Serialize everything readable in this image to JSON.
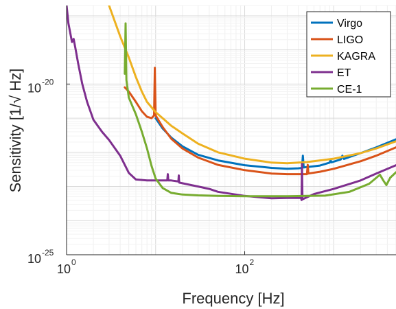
{
  "chart_data": {
    "type": "line",
    "title": "",
    "xlabel": "Frequency [Hz]",
    "ylabel": "Sensitivity [1/√ Hz]",
    "xscale": "log",
    "yscale": "log",
    "xlim": [
      1,
      5000
    ],
    "ylim": [
      1e-25,
      2e-18
    ],
    "xticks": [
      {
        "value": 1,
        "base": "10",
        "exp": "0"
      },
      {
        "value": 100,
        "base": "10",
        "exp": "2"
      }
    ],
    "yticks": [
      {
        "value": 1e-25,
        "base": "10",
        "exp": "-25"
      },
      {
        "value": 1e-20,
        "base": "10",
        "exp": "-20"
      }
    ],
    "grid": true,
    "legend_position": "top-right",
    "series": [
      {
        "name": "Virgo",
        "color": "#0072BD",
        "points": [
          [
            10,
            1e-21
          ],
          [
            12,
            5e-22
          ],
          [
            15,
            2.7e-22
          ],
          [
            20,
            1.5e-22
          ],
          [
            30,
            8.5e-23
          ],
          [
            50,
            5.8e-23
          ],
          [
            100,
            4.2e-23
          ],
          [
            200,
            3.5e-23
          ],
          [
            300,
            3.3e-23
          ],
          [
            400,
            3.4e-23
          ],
          [
            440,
            3.5e-23
          ],
          [
            450,
            8e-23
          ],
          [
            460,
            3.6e-23
          ],
          [
            700,
            4.1e-23
          ],
          [
            900,
            5e-23
          ],
          [
            920,
            6e-23
          ],
          [
            940,
            5.1e-23
          ],
          [
            1200,
            6.2e-23
          ],
          [
            1250,
            8e-23
          ],
          [
            1300,
            6.4e-23
          ],
          [
            2000,
            9.5e-23
          ],
          [
            3000,
            1.4e-22
          ],
          [
            5000,
            2.4e-22
          ]
        ]
      },
      {
        "name": "LIGO",
        "color": "#D95319",
        "points": [
          [
            4.5,
            8e-21
          ],
          [
            5,
            6e-21
          ],
          [
            6,
            3e-21
          ],
          [
            7,
            1.6e-21
          ],
          [
            8,
            1.1e-21
          ],
          [
            9,
            1e-21
          ],
          [
            9.6,
            1.2e-21
          ],
          [
            9.8,
            3e-20
          ],
          [
            10,
            1.2e-21
          ],
          [
            12,
            5.5e-22
          ],
          [
            15,
            2.5e-22
          ],
          [
            20,
            1.3e-22
          ],
          [
            30,
            7e-23
          ],
          [
            50,
            4.3e-23
          ],
          [
            100,
            3e-23
          ],
          [
            200,
            2.4e-23
          ],
          [
            300,
            2.3e-23
          ],
          [
            500,
            2.3e-23
          ],
          [
            510,
            4.3e-23
          ],
          [
            520,
            2.4e-23
          ],
          [
            700,
            2.7e-23
          ],
          [
            1000,
            3.3e-23
          ],
          [
            2000,
            5.5e-23
          ],
          [
            3000,
            8e-23
          ],
          [
            5000,
            1.4e-22
          ]
        ]
      },
      {
        "name": "KAGRA",
        "color": "#EDB120",
        "points": [
          [
            3,
            2e-18
          ],
          [
            4,
            2.5e-19
          ],
          [
            5,
            6e-20
          ],
          [
            6,
            1.6e-20
          ],
          [
            7,
            6e-21
          ],
          [
            8,
            3e-21
          ],
          [
            10,
            1.5e-21
          ],
          [
            12,
            1e-21
          ],
          [
            15,
            6e-22
          ],
          [
            20,
            3.6e-22
          ],
          [
            30,
            1.8e-22
          ],
          [
            50,
            1e-22
          ],
          [
            100,
            6.5e-23
          ],
          [
            200,
            5e-23
          ],
          [
            300,
            4.8e-23
          ],
          [
            500,
            5.2e-23
          ],
          [
            1000,
            6.5e-23
          ],
          [
            2000,
            9.5e-23
          ],
          [
            3000,
            1.3e-22
          ],
          [
            5000,
            2.1e-22
          ]
        ]
      },
      {
        "name": "ET",
        "color": "#7E2F8E",
        "points": [
          [
            1.0,
            2e-18
          ],
          [
            1.05,
            6e-19
          ],
          [
            1.15,
            1.7e-19
          ],
          [
            1.2,
            2.1e-19
          ],
          [
            1.25,
            1.2e-19
          ],
          [
            1.35,
            4e-20
          ],
          [
            1.5,
            1e-20
          ],
          [
            1.7,
            3e-21
          ],
          [
            2,
            9e-22
          ],
          [
            2.5,
            4e-22
          ],
          [
            3,
            2.3e-22
          ],
          [
            4,
            8e-23
          ],
          [
            5,
            2.5e-23
          ],
          [
            6,
            1.6e-23
          ],
          [
            8,
            1.5e-23
          ],
          [
            10,
            1.5e-23
          ],
          [
            13.5,
            1.5e-23
          ],
          [
            13.7,
            2.3e-23
          ],
          [
            13.9,
            1.5e-23
          ],
          [
            15,
            1.5e-23
          ],
          [
            18,
            1.4e-23
          ],
          [
            18.2,
            2.1e-23
          ],
          [
            18.4,
            1.3e-23
          ],
          [
            25,
            1.1e-23
          ],
          [
            30,
            1e-23
          ],
          [
            40,
            8.5e-24
          ],
          [
            50,
            7e-24
          ],
          [
            100,
            5.3e-24
          ],
          [
            200,
            4.5e-24
          ],
          [
            300,
            4.6e-24
          ],
          [
            430,
            4.6e-24
          ],
          [
            435,
            4e-24
          ],
          [
            440,
            4.6e-23
          ],
          [
            445,
            4.2e-24
          ],
          [
            600,
            6e-24
          ],
          [
            1000,
            8.5e-24
          ],
          [
            2000,
            1.5e-23
          ],
          [
            3000,
            2.4e-23
          ],
          [
            5000,
            4.2e-23
          ]
        ]
      },
      {
        "name": "CE-1",
        "color": "#77AC30",
        "points": [
          [
            4.5,
            2e-20
          ],
          [
            4.6,
            6e-19
          ],
          [
            4.7,
            1.3e-20
          ],
          [
            5,
            4e-21
          ],
          [
            6,
            1.3e-21
          ],
          [
            7,
            4e-22
          ],
          [
            8,
            1.3e-22
          ],
          [
            9,
            4e-23
          ],
          [
            10,
            1.7e-23
          ],
          [
            12,
            9e-24
          ],
          [
            15,
            6.5e-24
          ],
          [
            20,
            5.8e-24
          ],
          [
            30,
            5.5e-24
          ],
          [
            50,
            5.3e-24
          ],
          [
            100,
            5.2e-24
          ],
          [
            300,
            5.2e-24
          ],
          [
            800,
            5.4e-24
          ],
          [
            1500,
            7e-24
          ],
          [
            2500,
            1.2e-23
          ],
          [
            3300,
            2.2e-23
          ],
          [
            3600,
            1.5e-23
          ],
          [
            3900,
            1.1e-23
          ],
          [
            4300,
            1.8e-23
          ],
          [
            5000,
            2.6e-23
          ]
        ]
      }
    ]
  }
}
